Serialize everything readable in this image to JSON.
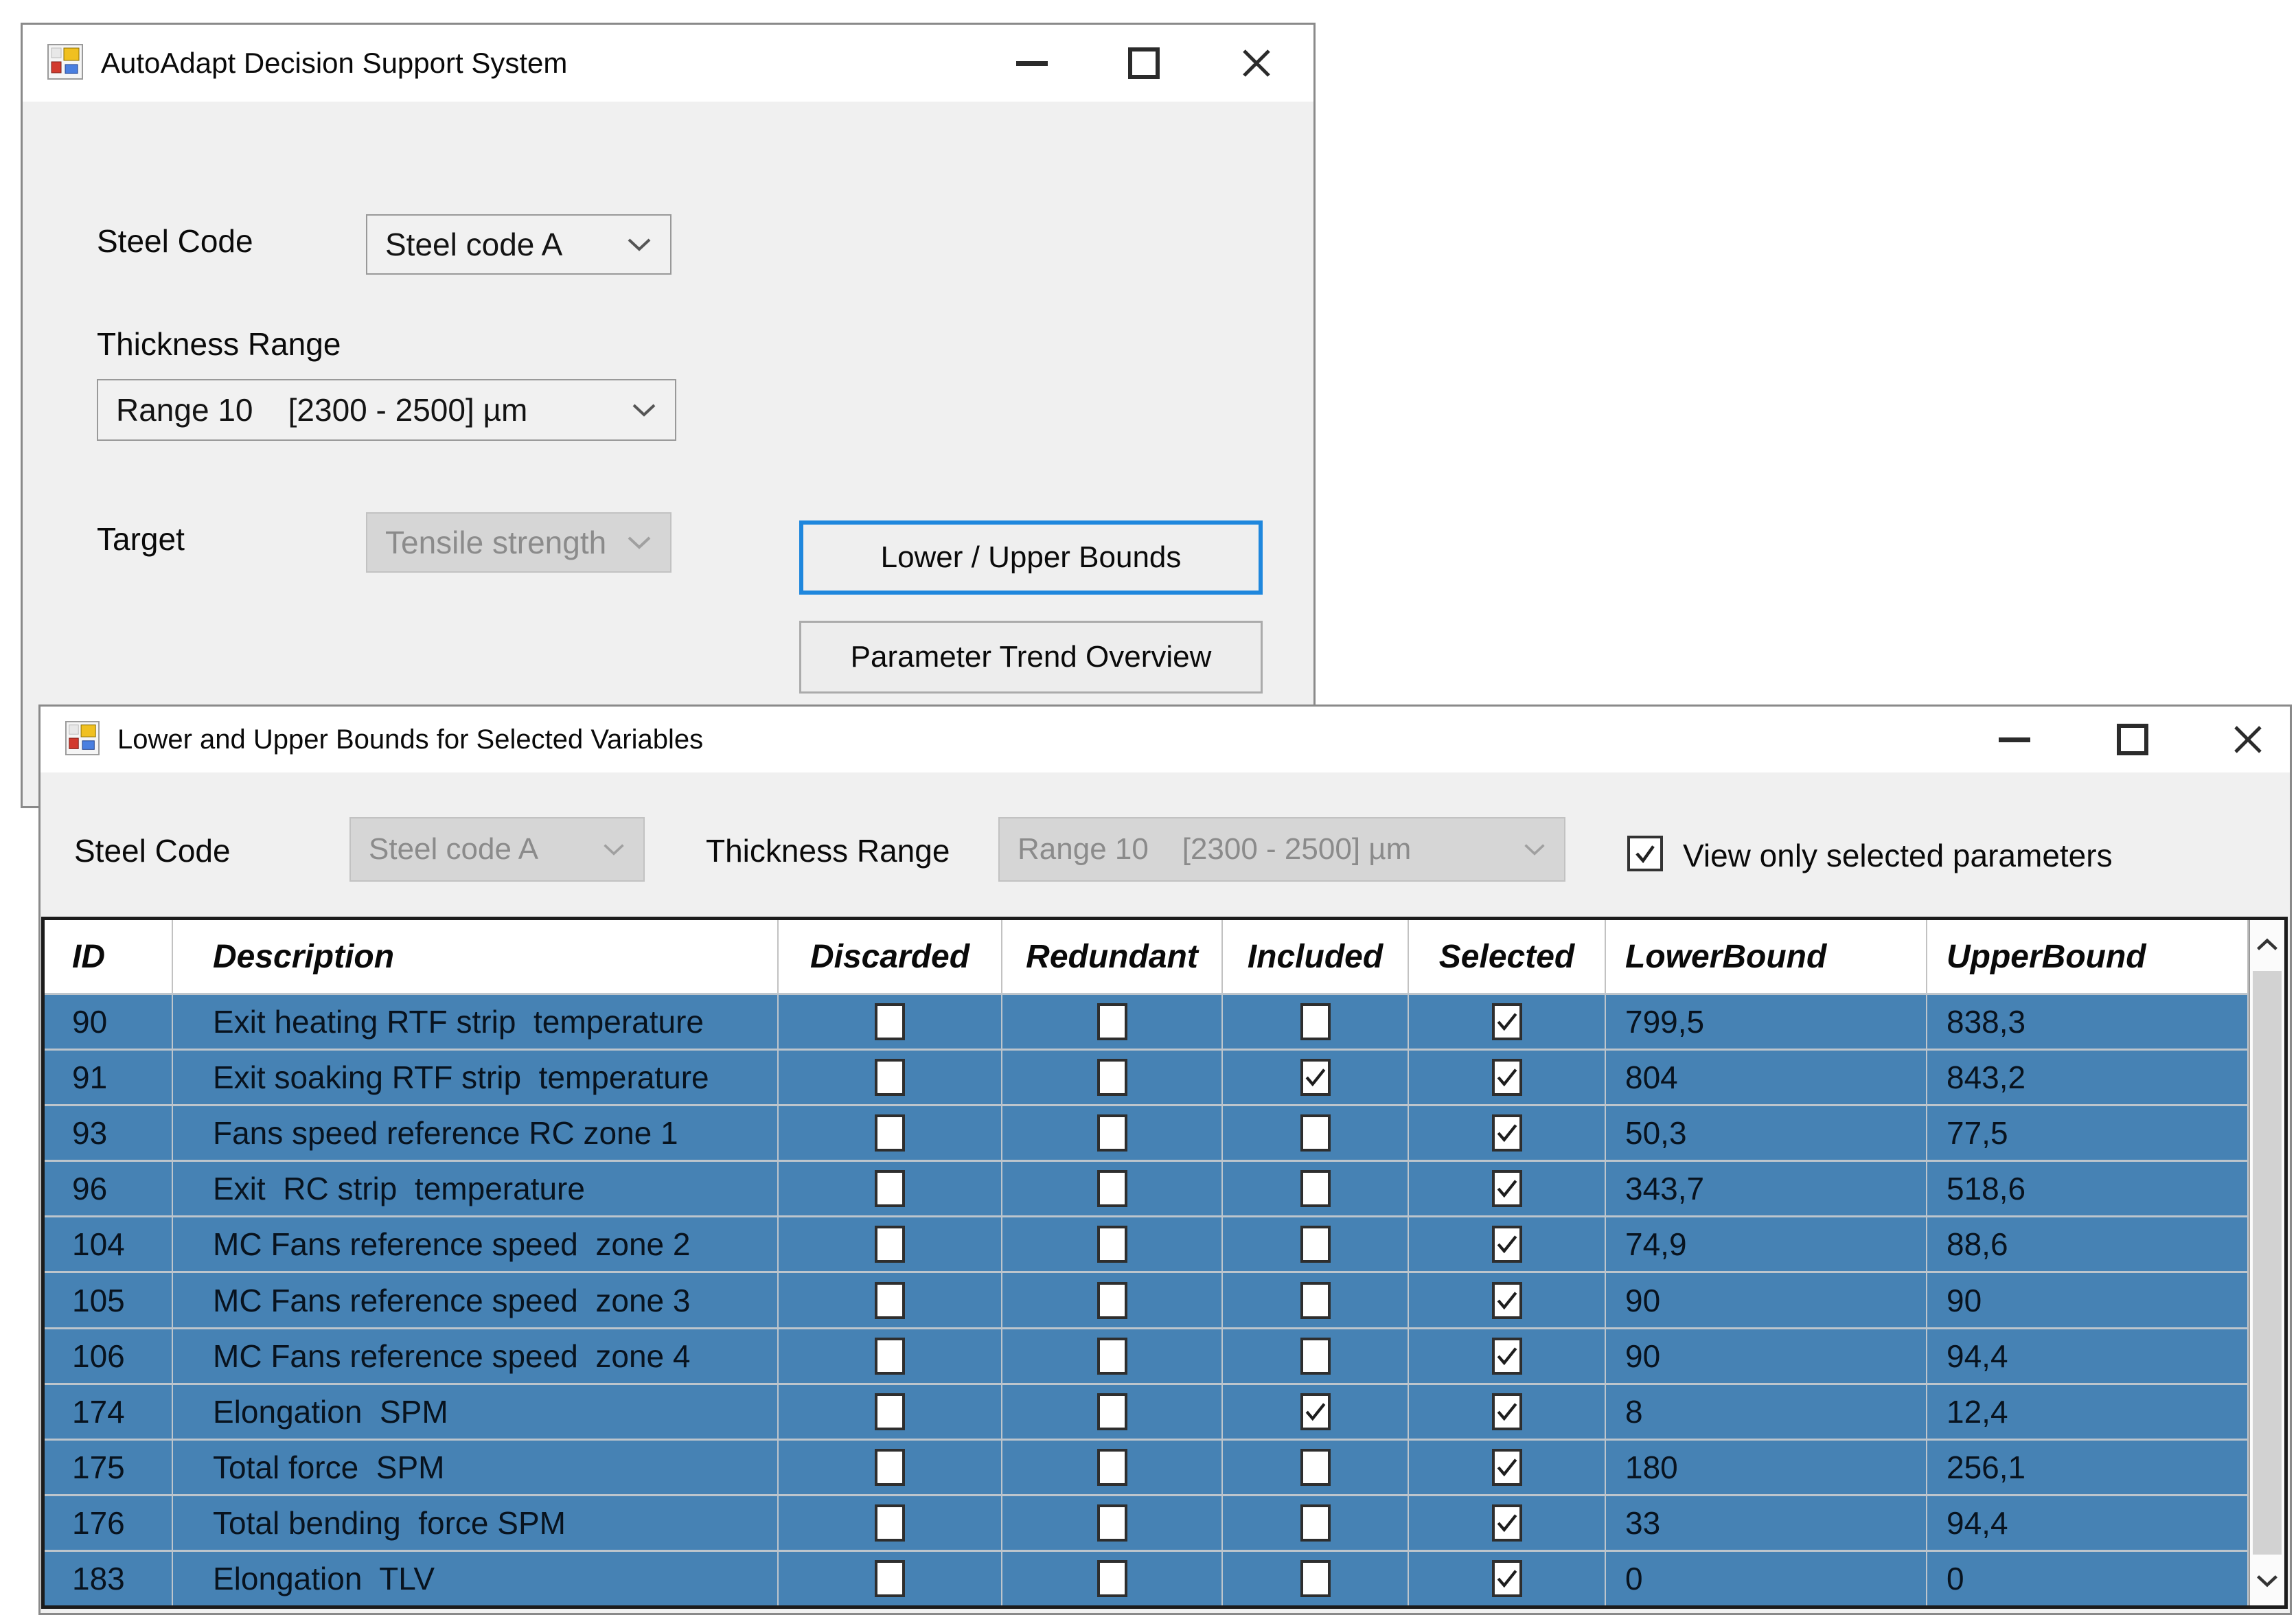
{
  "window1": {
    "title": "AutoAdapt Decision Support System",
    "steel_code_label": "Steel Code",
    "steel_code_value": "Steel code A",
    "thickness_label": "Thickness Range",
    "thickness_value": "Range 10    [2300 - 2500] µm",
    "target_label": "Target",
    "target_value": "Tensile strength",
    "bounds_button_label": "Lower / Upper Bounds",
    "trend_button_label": "Parameter Trend Overview"
  },
  "window2": {
    "title": "Lower and Upper Bounds for Selected Variables",
    "steel_code_label": "Steel Code",
    "steel_code_value": "Steel code A",
    "thickness_label": "Thickness Range",
    "thickness_value": "Range 10    [2300 - 2500] µm",
    "filter_checkbox": {
      "label": "View only selected parameters",
      "checked": true
    },
    "table": {
      "columns": [
        "ID",
        "Description",
        "Discarded",
        "Redundant",
        "Included",
        "Selected",
        "LowerBound",
        "UpperBound"
      ],
      "rows": [
        {
          "id": "90",
          "description": "Exit heating RTF strip  temperature",
          "discarded": false,
          "redundant": false,
          "included": false,
          "selected": true,
          "lower": "799,5",
          "upper": "838,3"
        },
        {
          "id": "91",
          "description": "Exit soaking RTF strip  temperature",
          "discarded": false,
          "redundant": false,
          "included": true,
          "selected": true,
          "lower": "804",
          "upper": "843,2"
        },
        {
          "id": "93",
          "description": "Fans speed reference RC zone 1",
          "discarded": false,
          "redundant": false,
          "included": false,
          "selected": true,
          "lower": "50,3",
          "upper": "77,5"
        },
        {
          "id": "96",
          "description": "Exit  RC strip  temperature",
          "discarded": false,
          "redundant": false,
          "included": false,
          "selected": true,
          "lower": "343,7",
          "upper": "518,6"
        },
        {
          "id": "104",
          "description": "MC Fans reference speed  zone 2",
          "discarded": false,
          "redundant": false,
          "included": false,
          "selected": true,
          "lower": "74,9",
          "upper": "88,6"
        },
        {
          "id": "105",
          "description": "MC Fans reference speed  zone 3",
          "discarded": false,
          "redundant": false,
          "included": false,
          "selected": true,
          "lower": "90",
          "upper": "90"
        },
        {
          "id": "106",
          "description": "MC Fans reference speed  zone 4",
          "discarded": false,
          "redundant": false,
          "included": false,
          "selected": true,
          "lower": "90",
          "upper": "94,4"
        },
        {
          "id": "174",
          "description": "Elongation  SPM",
          "discarded": false,
          "redundant": false,
          "included": true,
          "selected": true,
          "lower": "8",
          "upper": "12,4"
        },
        {
          "id": "175",
          "description": "Total force  SPM",
          "discarded": false,
          "redundant": false,
          "included": false,
          "selected": true,
          "lower": "180",
          "upper": "256,1"
        },
        {
          "id": "176",
          "description": "Total bending  force SPM",
          "discarded": false,
          "redundant": false,
          "included": false,
          "selected": true,
          "lower": "33",
          "upper": "94,4"
        },
        {
          "id": "183",
          "description": "Elongation  TLV",
          "discarded": false,
          "redundant": false,
          "included": false,
          "selected": true,
          "lower": "0",
          "upper": "0"
        }
      ]
    }
  },
  "colors": {
    "row_blue": "#4682b4",
    "focus_blue": "#1f87dd",
    "window_bg": "#f0f0f0"
  }
}
